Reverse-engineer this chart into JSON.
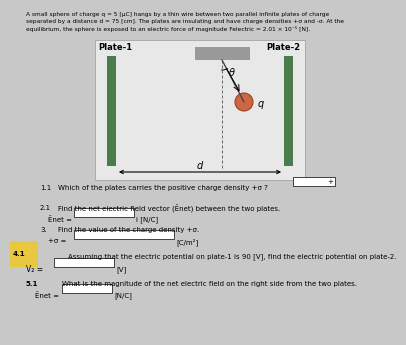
{
  "bg_color": "#c8c8c8",
  "diagram_bg": "#e8e8e8",
  "plate_color": "#4a7c4e",
  "wire_color": "#444444",
  "sphere_color": "#cc6644",
  "topbar_color": "#999999",
  "header": "A small sphere of charge q = 5 [μC] hangs by a thin wire between two parallel infinite plates of charge\nseparated by a distance d = 75 [cm]. The plates are insulating and have charge densities +σ and -σ. At the\nequilibrium, the sphere is exposed to an electric force of magnitude Felectric = 2.01 × 10⁻⁵ [N].",
  "plate1_label": "Plate-1",
  "plate2_label": "Plate-2",
  "q_label": "q",
  "theta_label": "θ",
  "d_label": "d",
  "q1_num": "1.1",
  "q1_text": "Which of the plates carries the positive charge density +σ ?",
  "q2_num": "2.1",
  "q2_text": "Find the net electric field vector (Ēnet) between the two plates.",
  "q2_label": "Ēnet =",
  "q2_unit": "i [N/C]",
  "q3_num": "3.",
  "q3_text": "Find the value of the charge density +σ.",
  "q3_label": "+σ =",
  "q3_unit": "[C/m²]",
  "q4_num": "4.1",
  "q4_text": "Assuming that the electric potential on plate-1 is 90 [V], find the electric potential on plate-2.",
  "q4_label": "V₂ =",
  "q4_unit": "[V]",
  "q5_num": "5.1",
  "q5_text": "What is the magnitude of the net electric field on the right side from the two plates.",
  "q5_label": "Ēnet =",
  "q5_unit": "[N/C]",
  "highlight_color": "#e8c840",
  "white": "#ffffff",
  "black": "#000000"
}
